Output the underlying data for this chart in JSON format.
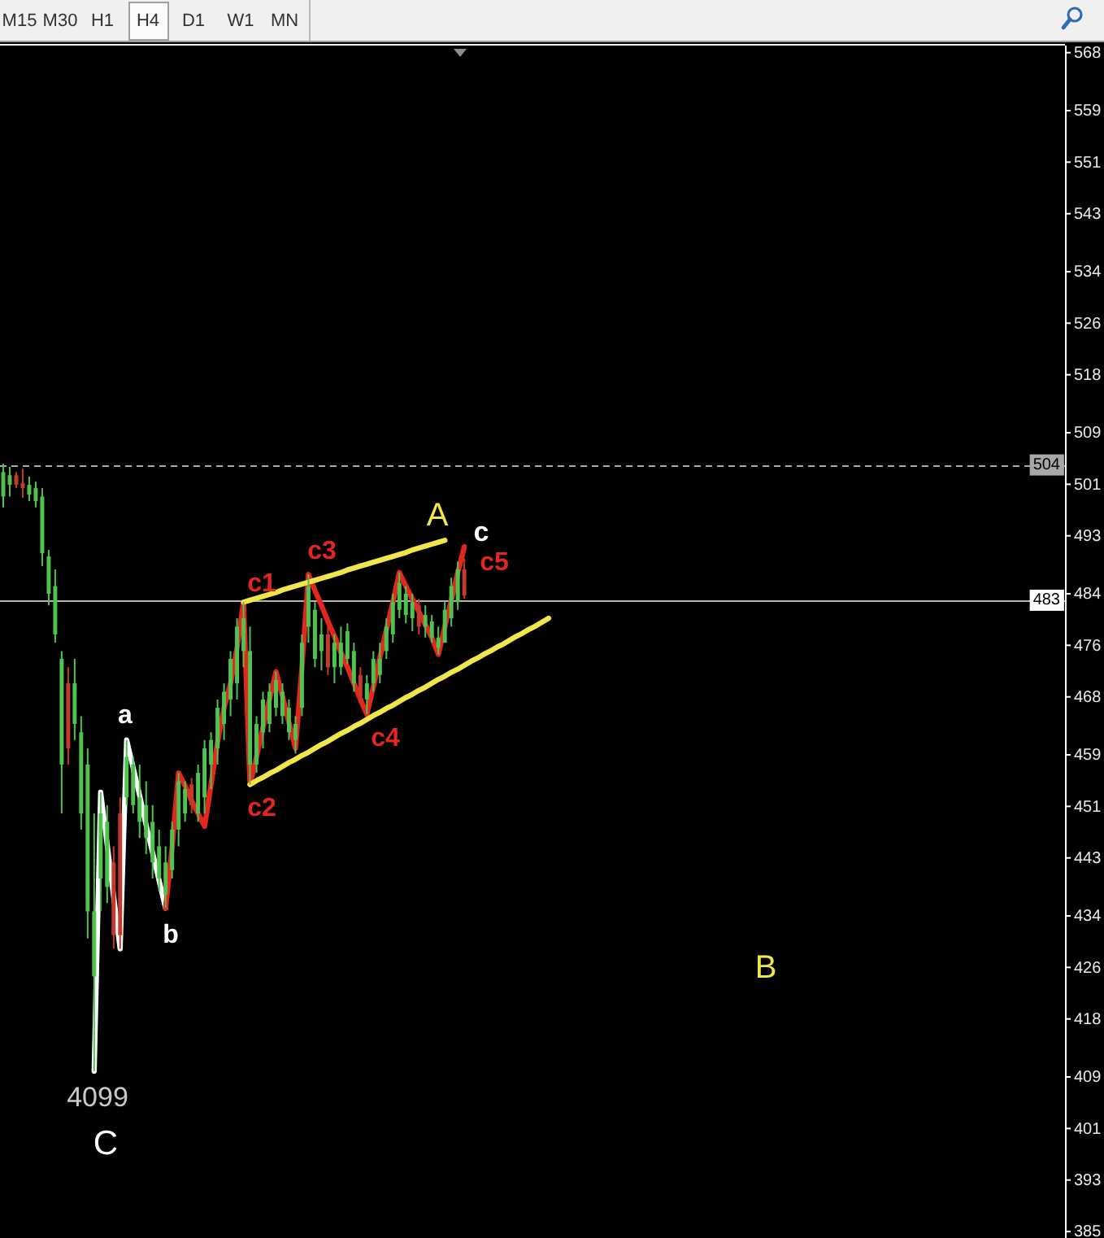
{
  "chart_data": {
    "type": "candlestick",
    "categories": [
      null,
      null,
      null,
      null,
      null,
      null,
      null,
      null,
      null,
      null,
      null,
      null,
      null,
      null,
      null,
      null,
      null,
      null,
      null,
      null,
      null,
      null,
      null,
      null,
      null,
      null,
      null,
      null,
      null,
      null,
      null,
      null,
      null,
      null,
      null,
      null,
      null,
      null,
      null,
      null,
      null,
      null,
      null,
      null,
      null,
      null,
      null,
      null,
      null,
      null,
      null,
      null,
      null,
      null,
      null,
      null,
      null,
      null,
      null,
      null,
      null,
      null,
      null,
      null,
      null,
      null,
      null,
      null,
      null,
      null,
      null,
      null,
      null,
      null,
      null,
      null,
      null,
      null,
      null,
      null,
      null,
      null,
      null,
      null,
      null,
      null,
      null,
      null,
      null,
      null,
      null,
      null,
      null,
      null,
      null,
      null,
      null,
      null,
      null,
      null,
      null,
      null,
      null,
      null,
      null,
      null,
      null,
      null,
      null,
      null,
      null,
      null,
      null,
      null,
      null,
      null,
      null,
      null,
      null,
      null,
      null,
      null,
      null,
      null,
      null,
      null,
      null,
      null,
      null,
      null,
      null,
      null,
      null,
      null,
      null,
      null,
      null,
      null,
      null,
      null,
      null,
      null,
      null,
      null,
      null,
      null,
      null,
      null,
      null,
      null,
      null,
      null,
      null,
      null,
      null,
      null,
      null,
      null,
      null,
      null,
      null,
      null,
      null,
      null
    ],
    "ohlc": [
      [
        499.1,
        504.2,
        497.4,
        502.9
      ],
      [
        500.9,
        503.7,
        499.1,
        502.4
      ],
      [
        502.4,
        502.9,
        500.4,
        500.9
      ],
      [
        501.2,
        503.4,
        498.9,
        500.4
      ],
      [
        499.4,
        502.2,
        498.4,
        500.9
      ],
      [
        498.4,
        501.4,
        497.4,
        500.4
      ],
      [
        490.3,
        500.4,
        488.3,
        499.1
      ],
      [
        484.0,
        490.8,
        482.2,
        489.8
      ],
      [
        477.7,
        487.8,
        476.4,
        485.2
      ],
      [
        457.5,
        475.1,
        449.9,
        473.9
      ],
      [
        470.1,
        472.6,
        457.5,
        460.0
      ],
      [
        463.8,
        473.9,
        461.3,
        470.1
      ],
      [
        449.9,
        465.0,
        447.4,
        462.5
      ],
      [
        434.7,
        460.0,
        430.5,
        457.5
      ],
      [
        424.6,
        449.9,
        409.9,
        434.7
      ],
      [
        439.8,
        453.2,
        434.7,
        449.9
      ],
      [
        438.5,
        451.2,
        436.0,
        448.6
      ],
      [
        442.3,
        444.8,
        428.9,
        431.0
      ],
      [
        449.9,
        452.4,
        428.9,
        431.0
      ],
      [
        452.4,
        461.3,
        451.2,
        458.7
      ],
      [
        451.2,
        458.7,
        449.9,
        457.5
      ],
      [
        448.6,
        457.5,
        446.1,
        452.4
      ],
      [
        446.1,
        454.9,
        443.6,
        451.2
      ],
      [
        442.3,
        451.2,
        439.8,
        448.6
      ],
      [
        439.8,
        447.4,
        437.8,
        444.8
      ],
      [
        437.3,
        444.8,
        435.2,
        442.3
      ],
      [
        441.1,
        448.6,
        439.8,
        447.4
      ],
      [
        447.4,
        456.2,
        444.8,
        454.9
      ],
      [
        449.9,
        454.9,
        448.6,
        453.7
      ],
      [
        454.4,
        455.4,
        449.9,
        451.2
      ],
      [
        449.9,
        457.5,
        448.6,
        456.2
      ],
      [
        452.4,
        461.3,
        449.9,
        460.0
      ],
      [
        457.5,
        462.5,
        453.7,
        461.3
      ],
      [
        460.0,
        467.6,
        457.5,
        466.3
      ],
      [
        463.8,
        470.1,
        461.3,
        468.8
      ],
      [
        467.6,
        475.1,
        465.0,
        473.9
      ],
      [
        470.1,
        480.2,
        467.6,
        478.9
      ],
      [
        475.1,
        482.7,
        472.6,
        480.2
      ],
      [
        457.5,
        478.9,
        454.4,
        475.1
      ],
      [
        457.5,
        465.0,
        456.2,
        463.8
      ],
      [
        462.5,
        468.8,
        460.0,
        467.6
      ],
      [
        463.8,
        470.1,
        462.5,
        468.8
      ],
      [
        466.3,
        471.9,
        465.0,
        470.6
      ],
      [
        465.0,
        470.1,
        463.8,
        468.8
      ],
      [
        462.5,
        467.6,
        461.3,
        466.3
      ],
      [
        461.3,
        465.0,
        459.2,
        463.8
      ],
      [
        466.3,
        477.7,
        465.0,
        476.4
      ],
      [
        478.9,
        487.0,
        476.4,
        485.2
      ],
      [
        473.9,
        482.7,
        472.6,
        481.5
      ],
      [
        475.1,
        480.2,
        472.1,
        477.7
      ],
      [
        477.7,
        478.9,
        471.4,
        472.6
      ],
      [
        472.6,
        477.7,
        470.1,
        476.4
      ],
      [
        472.6,
        478.9,
        471.4,
        476.4
      ],
      [
        473.9,
        479.4,
        473.1,
        478.2
      ],
      [
        470.1,
        476.4,
        468.8,
        475.1
      ],
      [
        471.4,
        472.6,
        467.1,
        468.1
      ],
      [
        467.6,
        471.4,
        465.3,
        470.1
      ],
      [
        470.1,
        475.1,
        468.8,
        473.9
      ],
      [
        471.4,
        476.4,
        470.1,
        473.9
      ],
      [
        475.1,
        480.2,
        473.9,
        478.9
      ],
      [
        477.7,
        484.0,
        476.4,
        482.7
      ],
      [
        481.5,
        487.3,
        480.2,
        485.7
      ],
      [
        480.7,
        485.2,
        479.4,
        484.0
      ],
      [
        480.2,
        484.0,
        478.2,
        482.7
      ],
      [
        482.2,
        483.2,
        477.7,
        478.9
      ],
      [
        478.9,
        482.2,
        477.2,
        480.7
      ],
      [
        477.2,
        480.7,
        476.4,
        479.7
      ],
      [
        475.6,
        478.9,
        474.6,
        477.2
      ],
      [
        476.4,
        482.7,
        476.4,
        481.5
      ],
      [
        480.2,
        486.5,
        478.9,
        485.2
      ],
      [
        482.7,
        489.0,
        481.5,
        487.8
      ],
      [
        487.8,
        489.5,
        483.2,
        483.7
      ],
      null,
      null,
      null,
      null,
      null,
      null,
      null,
      null,
      null,
      null,
      null,
      null,
      null,
      null,
      null,
      null,
      null,
      null,
      null,
      null,
      null,
      null,
      null,
      null,
      null,
      null,
      null,
      null,
      null,
      null,
      null,
      null,
      null,
      null,
      null,
      null,
      null,
      null,
      null,
      null,
      null,
      null,
      null,
      null,
      null,
      null,
      null,
      null,
      null,
      null,
      null,
      null,
      null,
      null,
      null,
      null,
      null,
      null,
      null,
      null,
      null,
      null,
      null,
      null,
      null,
      null,
      null,
      null,
      null,
      null,
      null,
      null,
      null,
      null,
      null,
      null,
      null,
      null,
      null,
      null,
      null,
      null,
      null,
      null,
      null,
      null,
      null,
      null,
      null,
      null,
      null,
      null
    ],
    "colors": [
      "#4fc34f",
      "#4fc34f",
      "#c43a2e",
      "#c43a2e",
      "#4fc34f",
      "#4fc34f",
      "#4fc34f",
      "#4fc34f",
      "#4fc34f",
      "#4fc34f",
      "#c43a2e",
      "#4fc34f",
      "#4fc34f",
      "#4fc34f",
      "#4fc34f",
      "#4fc34f",
      "#4fc34f",
      "#c43a2e",
      "#c43a2e",
      "#4fc34f",
      "#4fc34f",
      "#4fc34f",
      "#4fc34f",
      "#4fc34f",
      "#4fc34f",
      "#4fc34f",
      "#4fc34f",
      "#4fc34f",
      "#4fc34f",
      "#c43a2e",
      "#4fc34f",
      "#4fc34f",
      "#4fc34f",
      "#4fc34f",
      "#4fc34f",
      "#4fc34f",
      "#4fc34f",
      "#4fc34f",
      "#4fc34f",
      "#4fc34f",
      "#4fc34f",
      "#4fc34f",
      "#4fc34f",
      "#4fc34f",
      "#4fc34f",
      "#4fc34f",
      "#4fc34f",
      "#4fc34f",
      "#4fc34f",
      "#4fc34f",
      "#c43a2e",
      "#4fc34f",
      "#4fc34f",
      "#4fc34f",
      "#4fc34f",
      "#c43a2e",
      "#4fc34f",
      "#4fc34f",
      "#4fc34f",
      "#4fc34f",
      "#4fc34f",
      "#4fc34f",
      "#4fc34f",
      "#4fc34f",
      "#c43a2e",
      "#4fc34f",
      "#4fc34f",
      "#4fc34f",
      "#4fc34f",
      "#4fc34f",
      "#4fc34f",
      "#c43a2e",
      null,
      null,
      null,
      null,
      null,
      null,
      null,
      null,
      null,
      null,
      null,
      null,
      null,
      null,
      null,
      null,
      null,
      null,
      null,
      null,
      null,
      null,
      null,
      null,
      null,
      null,
      null,
      null,
      null,
      null,
      null,
      null,
      null,
      null,
      null,
      null,
      null,
      null,
      null,
      null,
      null,
      null,
      null,
      null,
      null,
      null,
      null,
      null,
      null,
      null,
      null,
      null,
      null,
      null,
      null,
      null,
      null,
      null,
      null,
      null,
      null,
      null,
      null,
      null,
      null,
      null,
      null,
      null,
      null,
      null,
      null,
      null,
      null,
      null,
      null,
      null,
      null,
      null,
      null,
      null,
      null,
      null,
      null,
      null,
      null,
      null,
      null,
      null,
      null,
      null,
      null,
      null
    ],
    "series": [
      {
        "type": "line",
        "color": "#ffffff",
        "values": [
          null,
          null,
          null,
          null,
          null,
          null,
          null,
          null,
          null,
          null,
          null,
          null,
          null,
          null,
          409.9,
          453.2,
          445.1,
          437.0,
          428.9,
          461.3,
          457.0,
          452.7,
          448.1,
          443.8,
          439.5,
          435.2,
          null,
          null,
          null,
          null,
          null,
          null,
          null,
          null,
          null,
          null,
          null,
          null,
          null,
          null,
          null,
          null,
          null,
          null,
          null,
          null,
          null,
          null,
          null,
          null,
          null,
          null,
          null,
          null,
          null,
          null,
          null,
          null,
          null,
          null,
          null,
          null,
          null,
          null,
          null,
          null,
          null,
          null,
          null,
          null,
          null,
          null,
          null,
          null,
          null,
          null,
          null,
          null,
          null,
          null,
          null,
          null,
          null,
          null,
          null,
          null,
          null,
          null,
          null,
          null,
          null,
          null,
          null,
          null,
          null,
          null,
          null,
          null,
          null,
          null,
          null,
          null,
          null,
          null,
          null,
          null,
          null,
          null,
          null,
          null,
          null,
          null,
          null,
          null,
          null,
          null,
          null,
          null,
          null,
          null,
          null,
          null,
          null,
          null,
          null,
          null,
          null,
          null,
          null,
          null,
          null,
          null,
          null,
          null,
          null,
          null,
          null,
          null,
          null,
          null,
          null,
          null,
          null,
          null,
          null,
          null,
          null,
          null,
          null,
          null,
          null,
          null,
          null,
          null,
          null,
          null,
          null,
          null,
          null,
          null,
          null,
          null,
          null,
          null
        ]
      },
      {
        "type": "line",
        "color": "#e3261e",
        "values": [
          null,
          null,
          null,
          null,
          null,
          null,
          null,
          null,
          null,
          null,
          null,
          null,
          null,
          null,
          null,
          null,
          null,
          null,
          null,
          null,
          null,
          null,
          null,
          null,
          null,
          435.2,
          444.6,
          456.2,
          454.2,
          451.9,
          449.9,
          447.9,
          454.4,
          461.0,
          466.3,
          470.1,
          475.6,
          482.7,
          454.4,
          458.7,
          463.3,
          467.6,
          471.9,
          468.1,
          464.0,
          460.0,
          472.6,
          487.0,
          484.5,
          482.2,
          479.7,
          477.4,
          474.9,
          472.6,
          470.1,
          467.6,
          465.3,
          469.6,
          474.1,
          478.4,
          482.7,
          487.3,
          485.2,
          483.2,
          481.2,
          479.2,
          477.2,
          474.6,
          478.9,
          483.0,
          487.3,
          491.3,
          null,
          null,
          null,
          null,
          null,
          null,
          null,
          null,
          null,
          null,
          null,
          null,
          null,
          null,
          null,
          null,
          null,
          null,
          null,
          null,
          null,
          null,
          null,
          null,
          null,
          null,
          null,
          null,
          null,
          null,
          null,
          null,
          null,
          null,
          null,
          null,
          null,
          null,
          null,
          null,
          null,
          null,
          null,
          null,
          null,
          null,
          null,
          null,
          null,
          null,
          null,
          null,
          null,
          null,
          null,
          null,
          null,
          null,
          null,
          null,
          null,
          null,
          null,
          null,
          null,
          null,
          null,
          null,
          null,
          null,
          null,
          null,
          null,
          null,
          null,
          null,
          null,
          null,
          null,
          null,
          null,
          null,
          null,
          null,
          null,
          null,
          null,
          null,
          null,
          null,
          null,
          null
        ]
      },
      {
        "type": "line",
        "color": "#f0e64a",
        "values": [
          null,
          null,
          null,
          null,
          null,
          null,
          null,
          null,
          null,
          null,
          null,
          null,
          null,
          null,
          null,
          null,
          null,
          null,
          null,
          null,
          null,
          null,
          null,
          null,
          null,
          null,
          null,
          null,
          null,
          null,
          null,
          null,
          null,
          null,
          null,
          null,
          null,
          482.7,
          483.0,
          483.3,
          483.6,
          483.9,
          484.2,
          484.6,
          484.9,
          485.2,
          485.5,
          485.8,
          486.1,
          486.4,
          486.7,
          487.0,
          487.3,
          487.7,
          488.0,
          488.3,
          488.6,
          488.9,
          489.2,
          489.5,
          489.8,
          490.1,
          490.4,
          490.8,
          491.1,
          491.4,
          491.7,
          492.0,
          492.3,
          null,
          null,
          null,
          null,
          null,
          null,
          null,
          null,
          null,
          null,
          null,
          null,
          null,
          null,
          null,
          null,
          null,
          null,
          null,
          null,
          null,
          null,
          null,
          null,
          null,
          null,
          null,
          null,
          null,
          null,
          null,
          null,
          null,
          null,
          null,
          null,
          null,
          null,
          null,
          null,
          null,
          null,
          null,
          null,
          null,
          null,
          null,
          null,
          null,
          null,
          null,
          null,
          null,
          null,
          null,
          null,
          null,
          null,
          null,
          null,
          null,
          null,
          null,
          null,
          null,
          null,
          null,
          null,
          null,
          null,
          null,
          null,
          null,
          null,
          null,
          null,
          null,
          null,
          null,
          null,
          null,
          null,
          null,
          null,
          null,
          null,
          null,
          null,
          null,
          null,
          null,
          null,
          null,
          null,
          null
        ]
      },
      {
        "type": "line",
        "color": "#f0e64a",
        "values": [
          null,
          null,
          null,
          null,
          null,
          null,
          null,
          null,
          null,
          null,
          null,
          null,
          null,
          null,
          null,
          null,
          null,
          null,
          null,
          null,
          null,
          null,
          null,
          null,
          null,
          null,
          null,
          null,
          null,
          null,
          null,
          null,
          null,
          null,
          null,
          null,
          null,
          null,
          454.4,
          455.0,
          455.5,
          456.1,
          456.6,
          457.2,
          457.8,
          458.3,
          458.9,
          459.4,
          460.0,
          460.6,
          461.1,
          461.7,
          462.3,
          462.8,
          463.4,
          463.9,
          464.5,
          465.1,
          465.6,
          466.2,
          466.7,
          467.3,
          467.9,
          468.4,
          469.0,
          469.5,
          470.1,
          470.7,
          471.2,
          471.8,
          472.3,
          472.9,
          473.5,
          474.0,
          474.6,
          475.1,
          475.7,
          476.2,
          476.8,
          477.4,
          477.9,
          478.5,
          479.0,
          479.6,
          480.2,
          null,
          null,
          null,
          null,
          null,
          null,
          null,
          null,
          null,
          null,
          null,
          null,
          null,
          null,
          null,
          null,
          null,
          null,
          null,
          null,
          null,
          null,
          null,
          null,
          null,
          null,
          null,
          null,
          null,
          null,
          null,
          null,
          null,
          null,
          null,
          null,
          null,
          null,
          null,
          null,
          null,
          null,
          null,
          null,
          null,
          null,
          null,
          null,
          null,
          null,
          null,
          null,
          null,
          null,
          null,
          null,
          null,
          null,
          null,
          null,
          null,
          null,
          null,
          null,
          null,
          null,
          null,
          null,
          null,
          null,
          null,
          null,
          null,
          null,
          null,
          null,
          null,
          null,
          null
        ]
      }
    ],
    "ylim": [
      384.0,
      569.1
    ],
    "yticks": [
      568,
      559,
      551,
      543,
      534,
      526,
      518,
      509,
      501,
      493,
      484,
      476,
      468,
      459,
      451,
      443,
      434,
      426,
      418,
      409,
      401,
      393,
      385
    ],
    "tick_labels": "y",
    "ref_lines": [
      {
        "axis": "y",
        "value": 504,
        "label": "504",
        "color": "#a8a8a8",
        "line_style": "dashed"
      },
      {
        "axis": "y",
        "value": 483,
        "label": "483",
        "color": "#b4b4b4"
      }
    ],
    "annotations": [
      "M15",
      "M30",
      "H1",
      "H4",
      "D1",
      "W1",
      "MN",
      {
        "text": "a",
        "y": 461.3
      },
      {
        "text": "b",
        "y": 435.2
      },
      {
        "text": "4099",
        "y": 409.9
      },
      "C",
      {
        "text": "c1",
        "y": 482.7
      },
      {
        "text": "c2",
        "y": 454.4
      },
      {
        "text": "c3",
        "y": 487.0
      },
      {
        "text": "c4",
        "y": 465.3
      },
      "c5",
      {
        "text": "A",
        "y": 492.3
      },
      "c",
      "B"
    ]
  }
}
